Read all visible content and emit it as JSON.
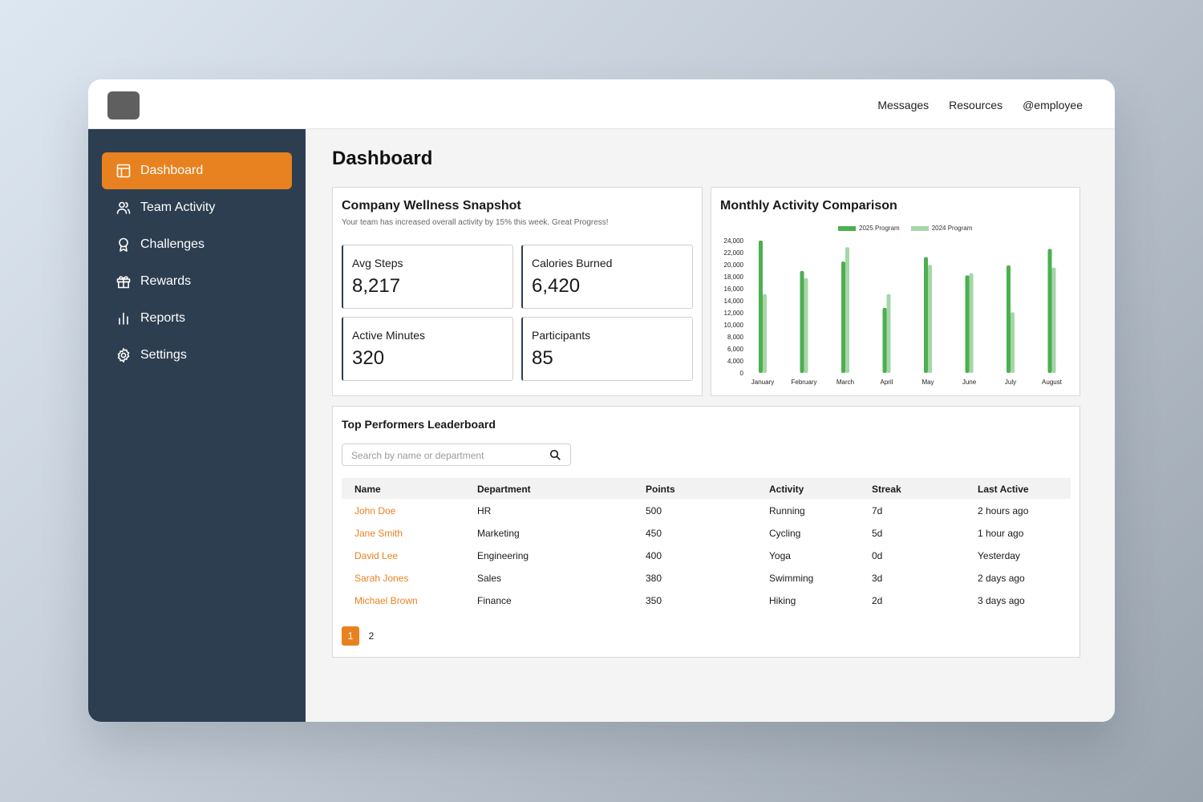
{
  "topnav": {
    "messages": "Messages",
    "resources": "Resources",
    "user": "@employee"
  },
  "sidebar": {
    "items": [
      {
        "label": "Dashboard",
        "icon": "layout-icon",
        "active": true
      },
      {
        "label": "Team Activity",
        "icon": "users-icon"
      },
      {
        "label": "Challenges",
        "icon": "award-icon"
      },
      {
        "label": "Rewards",
        "icon": "gift-icon"
      },
      {
        "label": "Reports",
        "icon": "bar-chart-icon"
      },
      {
        "label": "Settings",
        "icon": "gear-icon"
      }
    ]
  },
  "page": {
    "title": "Dashboard"
  },
  "snapshot": {
    "title": "Company Wellness Snapshot",
    "subtitle": "Your team has increased overall activity by 15% this week. Great Progress!",
    "stats": [
      {
        "label": "Avg Steps",
        "value": "8,217"
      },
      {
        "label": "Calories Burned",
        "value": "6,420"
      },
      {
        "label": "Active Minutes",
        "value": "320"
      },
      {
        "label": "Participants",
        "value": "85"
      }
    ]
  },
  "chart_data": {
    "type": "bar",
    "title": "Monthly Activity Comparison",
    "categories": [
      "January",
      "February",
      "March",
      "April",
      "May",
      "June",
      "July",
      "August"
    ],
    "series": [
      {
        "name": "2025 Program",
        "color": "#4caf50",
        "values": [
          24000,
          18500,
          20200,
          11800,
          21000,
          17700,
          19500,
          22500
        ]
      },
      {
        "name": "2024 Program",
        "color": "#a5d6a7",
        "values": [
          14300,
          17200,
          22800,
          14300,
          19600,
          18100,
          11000,
          19100
        ]
      }
    ],
    "ylim": [
      0,
      24000
    ],
    "yticks": [
      "0",
      "4,000",
      "6,000",
      "8,000",
      "10,000",
      "12,000",
      "14,000",
      "16,000",
      "18,000",
      "20,000",
      "22,000",
      "24,000"
    ],
    "legend": "top"
  },
  "leaderboard": {
    "title": "Top Performers Leaderboard",
    "search_placeholder": "Search by name or department",
    "columns": [
      "Name",
      "Department",
      "Points",
      "Activity",
      "Streak",
      "Last Active"
    ],
    "rows": [
      [
        "John Doe",
        "HR",
        "500",
        "Running",
        "7d",
        "2 hours ago"
      ],
      [
        "Jane Smith",
        "Marketing",
        "450",
        "Cycling",
        "5d",
        "1 hour ago"
      ],
      [
        "David Lee",
        "Engineering",
        "400",
        "Yoga",
        "0d",
        "Yesterday"
      ],
      [
        "Sarah Jones",
        "Sales",
        "380",
        "Swimming",
        "3d",
        "2 days ago"
      ],
      [
        "Michael Brown",
        "Finance",
        "350",
        "Hiking",
        "2d",
        "3 days ago"
      ]
    ],
    "pages": [
      "1",
      "2"
    ],
    "current_page": "1"
  },
  "colors": {
    "accent": "#e8811f",
    "sidebar": "#2d3e50"
  }
}
